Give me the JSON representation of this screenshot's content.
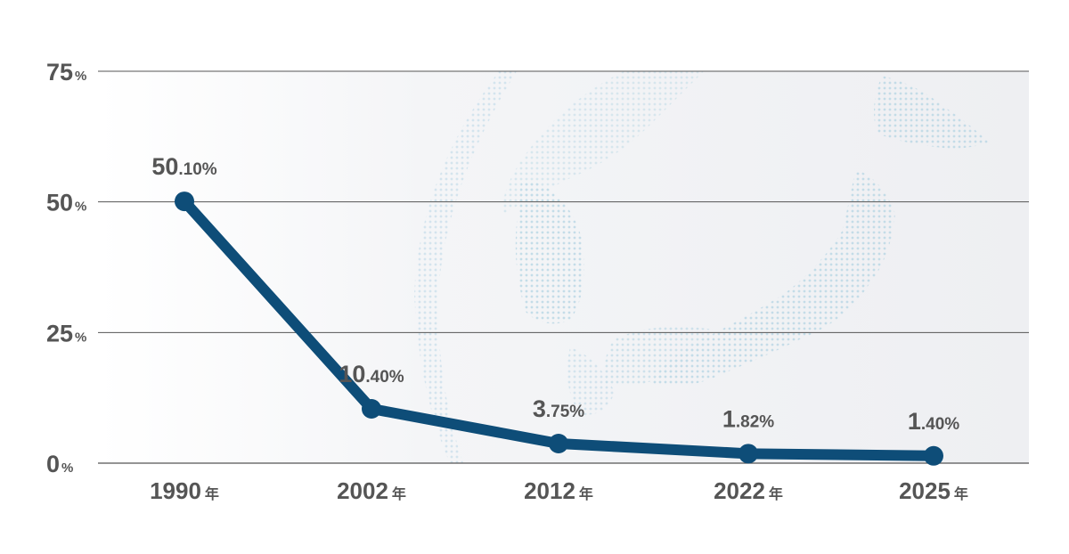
{
  "chart_data": {
    "type": "line",
    "categories": [
      "1990",
      "2002",
      "2012",
      "2022",
      "2025"
    ],
    "category_suffix": "年",
    "values": [
      50.1,
      10.4,
      3.75,
      1.82,
      1.4
    ],
    "data_labels": [
      {
        "int": "50",
        "frac": ".10%"
      },
      {
        "int": "10",
        "frac": ".40%"
      },
      {
        "int": "3",
        "frac": ".75%"
      },
      {
        "int": "1",
        "frac": ".82%"
      },
      {
        "int": "1",
        "frac": ".40%"
      }
    ],
    "y_ticks": [
      {
        "value": 0,
        "label": "0",
        "unit": "%"
      },
      {
        "value": 25,
        "label": "25",
        "unit": "%"
      },
      {
        "value": 50,
        "label": "50",
        "unit": "%"
      },
      {
        "value": 75,
        "label": "75",
        "unit": "%"
      }
    ],
    "ylim": [
      0,
      75
    ],
    "grid": true,
    "title": "",
    "xlabel": "",
    "ylabel": "",
    "colors": {
      "line": "#0e4d78",
      "grid": "#555555",
      "text": "#555555",
      "plot_bg": "#f3f4f6",
      "map_dots": "#bcd8e6"
    },
    "background_map": "east-asia-dotted-globe"
  }
}
